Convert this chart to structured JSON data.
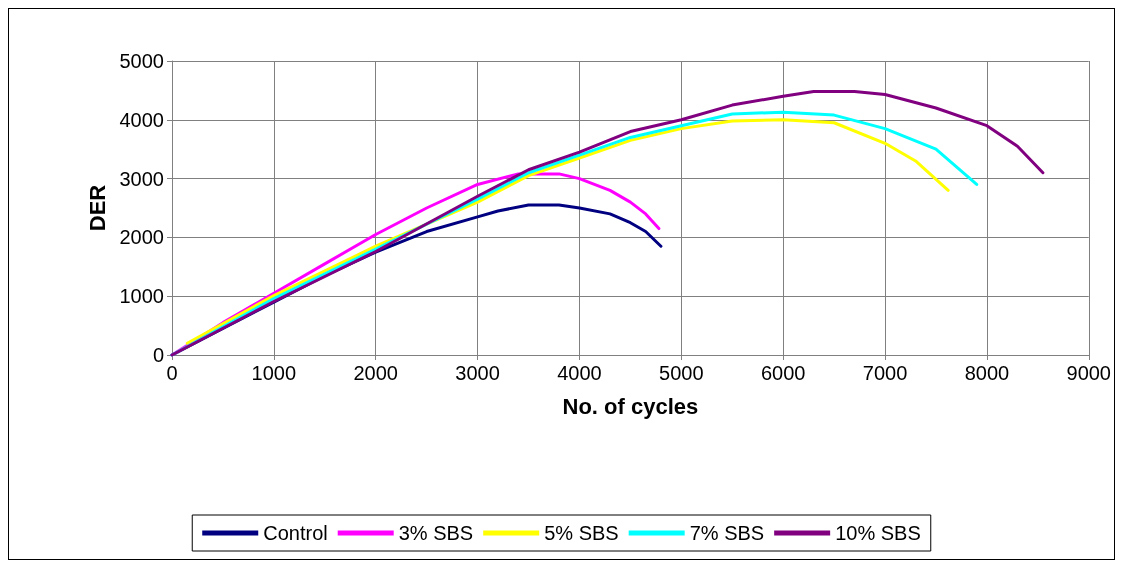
{
  "chart_data": {
    "type": "line",
    "xlabel": "No. of cycles",
    "ylabel": "DER",
    "xlim": [
      0,
      9000
    ],
    "xticks": [
      0,
      1000,
      2000,
      3000,
      4000,
      5000,
      6000,
      7000,
      8000,
      9000
    ],
    "ylim": [
      0,
      5000
    ],
    "yticks": [
      0,
      1000,
      2000,
      3000,
      4000,
      5000
    ],
    "grid": true,
    "legend": "bottom",
    "marker": "none",
    "line_style": "solid",
    "series": [
      {
        "name": "Control",
        "color": "#000080",
        "x": [
          0,
          500,
          1000,
          1500,
          2000,
          2500,
          3000,
          3200,
          3500,
          3800,
          4000,
          4300,
          4500,
          4650,
          4800
        ],
        "values": [
          0,
          450,
          900,
          1350,
          1750,
          2100,
          2350,
          2450,
          2550,
          2550,
          2500,
          2400,
          2250,
          2100,
          1850
        ]
      },
      {
        "name": "3% SBS",
        "color": "#ff00ff",
        "x": [
          0,
          500,
          1000,
          1500,
          2000,
          2500,
          3000,
          3400,
          3800,
          4000,
          4300,
          4500,
          4650,
          4780
        ],
        "values": [
          0,
          550,
          1050,
          1550,
          2050,
          2500,
          2900,
          3080,
          3080,
          3000,
          2800,
          2600,
          2400,
          2150
        ]
      },
      {
        "name": "5% SBS",
        "color": "#ffff00",
        "x": [
          150,
          1000,
          2000,
          3000,
          3500,
          4000,
          4500,
          5000,
          5500,
          6000,
          6500,
          7000,
          7300,
          7620
        ],
        "values": [
          200,
          1010,
          1850,
          2600,
          3050,
          3350,
          3650,
          3850,
          3980,
          4000,
          3950,
          3600,
          3300,
          2800
        ]
      },
      {
        "name": "7% SBS",
        "color": "#00ffff",
        "x": [
          0,
          1000,
          2000,
          3000,
          3500,
          4000,
          4500,
          5000,
          5500,
          6000,
          6500,
          7000,
          7500,
          7900
        ],
        "values": [
          0,
          960,
          1800,
          2650,
          3100,
          3400,
          3700,
          3900,
          4100,
          4130,
          4080,
          3850,
          3500,
          2900
        ]
      },
      {
        "name": "10% SBS",
        "color": "#800080",
        "x": [
          0,
          1000,
          2000,
          3000,
          3500,
          4000,
          4500,
          5000,
          5500,
          6000,
          6300,
          6700,
          7000,
          7500,
          8000,
          8300,
          8550
        ],
        "values": [
          0,
          910,
          1760,
          2700,
          3150,
          3450,
          3800,
          4000,
          4250,
          4400,
          4480,
          4480,
          4430,
          4200,
          3900,
          3550,
          3100
        ]
      }
    ]
  }
}
